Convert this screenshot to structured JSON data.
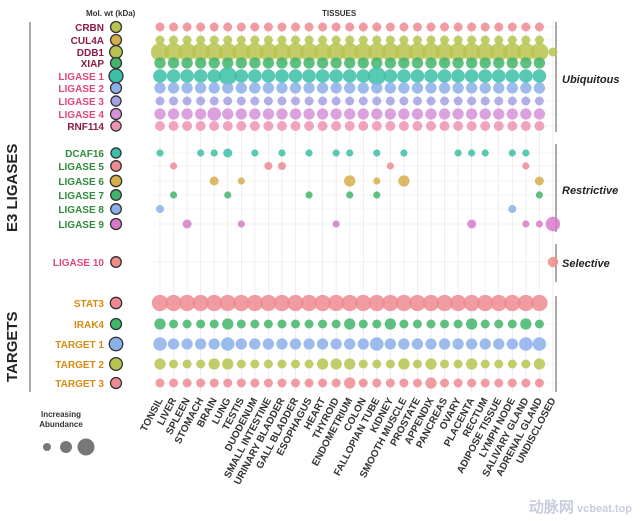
{
  "headers": {
    "mol_wt": "Mol. wt (kDa)",
    "tissues": "TISSUES"
  },
  "side_labels": {
    "e3": "E3 LIGASES",
    "targets": "TARGETS"
  },
  "group_labels": {
    "ubiquitous": "Ubiquitous",
    "restrictive": "Restrictive",
    "selective": "Selective"
  },
  "legend": {
    "title_line1": "Increasing",
    "title_line2": "Abundance"
  },
  "watermark": {
    "brand": "动脉网",
    "domain": "vcbeat.top"
  },
  "colors": {
    "maroon": "#8b1c48",
    "pink": "#e0457c",
    "green": "#2e8b3c",
    "orange": "#d98a12",
    "dot_red": "#ef8a92",
    "dot_olive": "#b7c44f",
    "dot_teal": "#3bbfa6",
    "dot_blue": "#8ab0ea",
    "dot_purple": "#a6a0e4",
    "dot_mauve": "#d592d8",
    "dot_rose": "#ee93b4",
    "dot_green": "#42b56b",
    "dot_gold": "#d6ae4a",
    "dot_magenta": "#d77bc9",
    "dot_salmon": "#ee8d86"
  },
  "chart_data": {
    "type": "scatter",
    "title": "",
    "x_title": "TISSUES",
    "categories": [
      "TONSIL",
      "LIVER",
      "SPLEEN",
      "STOMACH",
      "BRAIN",
      "LUNG",
      "TESTIS",
      "DUODENUM",
      "SMALL INTESTINE",
      "URINARY BLADDER",
      "GALL BLADDER",
      "ESOPHAGUS",
      "HEART",
      "THYROID",
      "ENDOMETRIUM",
      "COLON",
      "FALLOPIAN TUBE",
      "KIDNEY",
      "SMOOTH MUSCLE",
      "PROSTATE",
      "APPENDIX",
      "PANCREAS",
      "OVARY",
      "PLACENTA",
      "RECTUM",
      "ADIPOSE TISSUE",
      "LYMPH NODE",
      "SALIVARY GLAND",
      "ADRENAL GLAND",
      "UNDISCLOSED"
    ],
    "value_scale": "relative abundance, 0-3 (marker area)",
    "rows": [
      {
        "name": "CRBN",
        "group": "E3 LIGASES",
        "class": "Ubiquitous",
        "label_color": "maroon",
        "mw_size": 1,
        "mw_fill": "dot_olive",
        "color": "dot_red",
        "values": [
          1,
          1,
          1,
          1,
          1,
          1,
          1,
          1,
          1,
          1,
          1,
          1,
          1,
          1,
          1,
          1,
          1,
          1,
          1,
          1,
          1,
          1,
          1,
          1,
          1,
          1,
          1,
          1,
          1,
          0
        ]
      },
      {
        "name": "CUL4A",
        "group": "E3 LIGASES",
        "class": "Ubiquitous",
        "label_color": "maroon",
        "mw_size": 1,
        "mw_fill": "dot_gold",
        "color": "dot_olive",
        "values": [
          1,
          1,
          1,
          1,
          1,
          1,
          1,
          1,
          1,
          1,
          1,
          1,
          1,
          1,
          1,
          1,
          1,
          1,
          1,
          1,
          1,
          1,
          1,
          1,
          1,
          1,
          1,
          1,
          1,
          0
        ]
      },
      {
        "name": "DDB1",
        "group": "E3 LIGASES",
        "class": "Ubiquitous",
        "label_color": "maroon",
        "mw_size": 1.4,
        "mw_fill": "dot_olive",
        "color": "dot_olive",
        "values": [
          3,
          3,
          3,
          3,
          3,
          3,
          3,
          3,
          3,
          3,
          3,
          3,
          3,
          3,
          3,
          3,
          3,
          3,
          3,
          3,
          3,
          3,
          3,
          3,
          3,
          3,
          3,
          3,
          3,
          1
        ]
      },
      {
        "name": "XIAP",
        "group": "E3 LIGASES",
        "class": "Ubiquitous",
        "label_color": "maroon",
        "mw_size": 1,
        "mw_fill": "dot_green",
        "color": "dot_green",
        "values": [
          1.5,
          1.5,
          1.5,
          1.5,
          1.5,
          1.5,
          1.5,
          1.5,
          1.5,
          1.5,
          1.5,
          1.5,
          1.5,
          1.5,
          1.5,
          1.5,
          1.5,
          1.5,
          1.5,
          1.5,
          1.5,
          1.5,
          1.5,
          1.5,
          1.5,
          1.5,
          1.5,
          1.5,
          1.5,
          0
        ]
      },
      {
        "name": "LIGASE 1",
        "group": "E3 LIGASES",
        "class": "Ubiquitous",
        "label_color": "pink",
        "mw_size": 1.7,
        "mw_fill": "dot_teal",
        "color": "dot_teal",
        "values": [
          2,
          2,
          2,
          2,
          2,
          3,
          2,
          2,
          2,
          2,
          2,
          2,
          2,
          2,
          2,
          2,
          3,
          2,
          2,
          2,
          2,
          2,
          2,
          2,
          2,
          2,
          2,
          2,
          2,
          0
        ]
      },
      {
        "name": "LIGASE 2",
        "group": "E3 LIGASES",
        "class": "Ubiquitous",
        "label_color": "pink",
        "mw_size": 1,
        "mw_fill": "dot_blue",
        "color": "dot_blue",
        "values": [
          1.5,
          1.5,
          1.5,
          1.5,
          1.5,
          1.5,
          1.5,
          1.5,
          1.5,
          1.5,
          1.5,
          1.5,
          1.5,
          1.5,
          1.5,
          1.5,
          1.5,
          1.5,
          1.5,
          1.5,
          1.5,
          1.5,
          1.5,
          1.5,
          1.5,
          1.5,
          1.5,
          1.5,
          1.5,
          0
        ]
      },
      {
        "name": "LIGASE 3",
        "group": "E3 LIGASES",
        "class": "Ubiquitous",
        "label_color": "pink",
        "mw_size": 0.8,
        "mw_fill": "dot_purple",
        "color": "dot_purple",
        "values": [
          1,
          1,
          1,
          1,
          1,
          1,
          1,
          1,
          1,
          1,
          1,
          1,
          1,
          1,
          1,
          1,
          1,
          1,
          1,
          1,
          1,
          1,
          1,
          1,
          1,
          1,
          1,
          1,
          1,
          0
        ]
      },
      {
        "name": "LIGASE 4",
        "group": "E3 LIGASES",
        "class": "Ubiquitous",
        "label_color": "pink",
        "mw_size": 1,
        "mw_fill": "dot_mauve",
        "color": "dot_mauve",
        "values": [
          1.5,
          1.5,
          1.5,
          1.5,
          2,
          1.5,
          1.5,
          1.5,
          1.5,
          1.5,
          1.5,
          1.5,
          1.5,
          1.5,
          1.5,
          1.5,
          1.5,
          1.5,
          1.5,
          1.5,
          1.5,
          1.5,
          1.5,
          1.5,
          1.5,
          1.5,
          1.5,
          1.5,
          1.5,
          0
        ]
      },
      {
        "name": "RNF114",
        "group": "E3 LIGASES",
        "class": "Ubiquitous",
        "label_color": "maroon",
        "mw_size": 0.8,
        "mw_fill": "dot_rose",
        "color": "dot_rose",
        "values": [
          1.2,
          1.2,
          1.2,
          1.2,
          1.2,
          1.2,
          1.2,
          1.2,
          1.2,
          1.2,
          1.2,
          1.2,
          1.2,
          1.2,
          1.2,
          1.2,
          1.2,
          1.2,
          1.2,
          1.2,
          1.2,
          1.2,
          1.2,
          1.2,
          1.2,
          1.2,
          1.2,
          1.2,
          1.2,
          0
        ]
      },
      {
        "name": "DCAF16",
        "group": "E3 LIGASES",
        "class": "Restrictive",
        "label_color": "green",
        "mw_size": 0.8,
        "mw_fill": "dot_teal",
        "color": "dot_teal",
        "values": [
          0.6,
          0,
          0,
          0.6,
          0.6,
          1,
          0,
          0.6,
          0,
          0.6,
          0,
          0.6,
          0,
          0.6,
          0.6,
          0,
          0.6,
          0,
          0.6,
          0,
          0,
          0,
          0.6,
          0.6,
          0.6,
          0,
          0.6,
          0.6,
          0,
          0
        ]
      },
      {
        "name": "LIGASE 5",
        "group": "E3 LIGASES",
        "class": "Restrictive",
        "label_color": "green",
        "mw_size": 0.9,
        "mw_fill": "dot_red",
        "color": "dot_red",
        "values": [
          0,
          0.6,
          0,
          0,
          0,
          0,
          0,
          0,
          0.8,
          0.8,
          0,
          0,
          0,
          0,
          0,
          0,
          0,
          0.6,
          0,
          0,
          0,
          0,
          0,
          0,
          0,
          0,
          0,
          0.6,
          0,
          0
        ]
      },
      {
        "name": "LIGASE 6",
        "group": "E3 LIGASES",
        "class": "Restrictive",
        "label_color": "green",
        "mw_size": 1.1,
        "mw_fill": "dot_gold",
        "color": "dot_gold",
        "values": [
          0,
          0,
          0,
          0,
          1,
          0,
          0.6,
          0,
          0,
          0,
          0,
          0,
          0,
          0,
          1.5,
          0,
          0.6,
          0,
          1.5,
          0,
          0,
          0,
          0,
          0,
          0,
          0,
          0,
          0,
          1,
          0
        ]
      },
      {
        "name": "LIGASE 7",
        "group": "E3 LIGASES",
        "class": "Restrictive",
        "label_color": "green",
        "mw_size": 0.9,
        "mw_fill": "dot_green",
        "color": "dot_green",
        "values": [
          0,
          0.6,
          0,
          0,
          0,
          0.6,
          0,
          0,
          0,
          0,
          0,
          0.6,
          0,
          0,
          0.6,
          0,
          0.6,
          0,
          0,
          0,
          0,
          0,
          0,
          0,
          0,
          0,
          0,
          0,
          0.6,
          0
        ]
      },
      {
        "name": "LIGASE 8",
        "group": "E3 LIGASES",
        "class": "Restrictive",
        "label_color": "green",
        "mw_size": 0.9,
        "mw_fill": "dot_blue",
        "color": "dot_blue",
        "values": [
          0.8,
          0,
          0,
          0,
          0,
          0,
          0,
          0,
          0,
          0,
          0,
          0,
          0,
          0,
          0,
          0,
          0,
          0,
          0,
          0,
          0,
          0,
          0,
          0,
          0,
          0,
          0.8,
          0,
          0,
          0
        ]
      },
      {
        "name": "LIGASE 9",
        "group": "E3 LIGASES",
        "class": "Restrictive",
        "label_color": "green",
        "mw_size": 1,
        "mw_fill": "dot_magenta",
        "color": "dot_magenta",
        "values": [
          0,
          0,
          1,
          0,
          0,
          0,
          0.6,
          0,
          0,
          0,
          0,
          0,
          0,
          0.6,
          0,
          0,
          0,
          0,
          0,
          0,
          0,
          0,
          0,
          1,
          0,
          0,
          0,
          0.6,
          0.6,
          2.2
        ]
      },
      {
        "name": "LIGASE 10",
        "group": "E3 LIGASES",
        "class": "Selective",
        "label_color": "pink",
        "mw_size": 0.9,
        "mw_fill": "dot_salmon",
        "color": "dot_salmon",
        "values": [
          0,
          0,
          0,
          0,
          0,
          0,
          0,
          0,
          0,
          0,
          0,
          0,
          0,
          0,
          0,
          0,
          0,
          0,
          0,
          0,
          0,
          0,
          0,
          0,
          0,
          0,
          0,
          0,
          0,
          1.3
        ]
      },
      {
        "name": "STAT3",
        "group": "TARGETS",
        "class": "",
        "label_color": "orange",
        "mw_size": 1.1,
        "mw_fill": "dot_red",
        "color": "dot_red",
        "values": [
          2.6,
          2.6,
          2.6,
          2.6,
          2.6,
          2.6,
          2.6,
          2.6,
          2.6,
          2.6,
          2.6,
          2.6,
          2.6,
          2.6,
          2.6,
          2.6,
          2.6,
          2.6,
          2.6,
          2.6,
          2.6,
          2.6,
          2.6,
          2.6,
          2.6,
          2.6,
          2.6,
          2.6,
          2.6,
          0
        ]
      },
      {
        "name": "IRAK4",
        "group": "TARGETS",
        "class": "",
        "label_color": "orange",
        "mw_size": 1,
        "mw_fill": "dot_green",
        "color": "dot_green",
        "values": [
          1.5,
          1,
          1,
          1,
          1,
          1.5,
          1,
          1,
          1,
          1,
          1,
          1,
          1,
          1,
          1.5,
          1,
          1,
          1.5,
          1,
          1,
          1,
          1,
          1,
          1.5,
          1,
          1,
          1,
          1.5,
          1,
          0
        ]
      },
      {
        "name": "TARGET 1",
        "group": "TARGETS",
        "class": "",
        "label_color": "orange",
        "mw_size": 1.6,
        "mw_fill": "dot_blue",
        "color": "dot_blue",
        "values": [
          2,
          1.5,
          1.5,
          1.5,
          1.5,
          2,
          1.5,
          1.5,
          1.5,
          1.5,
          1.5,
          1.5,
          1.5,
          1.5,
          1.5,
          1.5,
          2,
          1.5,
          1.5,
          1.5,
          1.5,
          1.5,
          1.5,
          1.5,
          1.5,
          1.5,
          1.5,
          2,
          2,
          0
        ]
      },
      {
        "name": "TARGET 2",
        "group": "TARGETS",
        "class": "",
        "label_color": "orange",
        "mw_size": 1.4,
        "mw_fill": "dot_olive",
        "color": "dot_olive",
        "values": [
          1.5,
          1,
          1,
          1,
          1.5,
          1.5,
          1,
          1,
          1,
          1,
          1,
          1,
          1.5,
          1.5,
          1.5,
          1,
          1,
          1,
          1.5,
          1,
          1.5,
          1,
          1,
          1.5,
          1,
          1,
          1,
          1,
          1.5,
          0
        ]
      },
      {
        "name": "TARGET 3",
        "group": "TARGETS",
        "class": "",
        "label_color": "orange",
        "mw_size": 1,
        "mw_fill": "dot_red",
        "color": "dot_red",
        "values": [
          1,
          1,
          1,
          1,
          1,
          1,
          1,
          1,
          1,
          1,
          1,
          1,
          1,
          1,
          1.5,
          1,
          1,
          1,
          1,
          1,
          1.5,
          1,
          1,
          1,
          1,
          1,
          1,
          1,
          1,
          0
        ]
      }
    ]
  }
}
